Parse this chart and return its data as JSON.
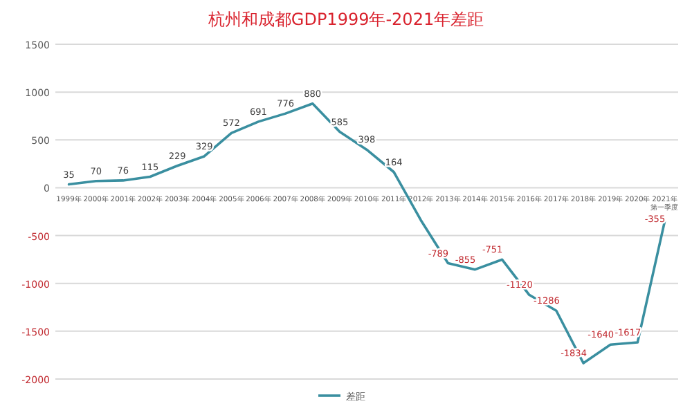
{
  "chart_data": {
    "type": "line",
    "title": "杭州和成都GDP1999年-2021年差距",
    "categories": [
      "1999年",
      "2000年",
      "2001年",
      "2002年",
      "2003年",
      "2004年",
      "2005年",
      "2006年",
      "2007年",
      "2008年",
      "2009年",
      "2010年",
      "2011年",
      "2012年",
      "2013年",
      "2014年",
      "2015年",
      "2016年",
      "2017年",
      "2018年",
      "2019年",
      "2020年",
      "2021年第一季度"
    ],
    "series": [
      {
        "name": "差距",
        "color": "#3a8fa0",
        "values": [
          35,
          70,
          76,
          115,
          229,
          329,
          572,
          691,
          776,
          880,
          585,
          398,
          164,
          -340,
          -789,
          -855,
          -751,
          -1120,
          -1286,
          -1834,
          -1640,
          -1617,
          -355
        ],
        "value_labels": [
          "35",
          "70",
          "76",
          "115",
          "229",
          "329",
          "572",
          "691",
          "776",
          "880",
          "585",
          "398",
          "164",
          null,
          "-789",
          "-855",
          "-751",
          "-1120",
          "-1286",
          "-1834",
          "-1640",
          "-1617",
          "-355"
        ]
      }
    ],
    "ylim": [
      -2000,
      1500
    ],
    "yticks": [
      -2000,
      -1500,
      -1000,
      -500,
      0,
      500,
      1000,
      1500
    ],
    "grid": "y",
    "legend": "bottom",
    "marker": "none",
    "line_style": "solid"
  }
}
